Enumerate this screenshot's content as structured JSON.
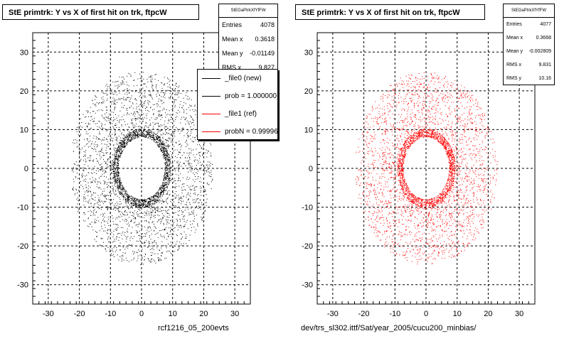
{
  "chart_data": [
    {
      "type": "scatter",
      "title": "StE primtrk: Y vs X of first hit on trk, ftpcW",
      "xlabel": "",
      "ylabel": "",
      "xlim": [
        -35,
        35
      ],
      "ylim": [
        -35,
        35
      ],
      "x_ticks": [
        -30,
        -20,
        -10,
        0,
        10,
        20,
        30
      ],
      "y_ticks": [
        -30,
        -20,
        -10,
        0,
        10,
        20,
        30
      ],
      "grid": true,
      "marker_color": "#000000",
      "distribution": {
        "inner_radius": 8,
        "outer_radius": 25,
        "n_points": 4078
      },
      "stats": {
        "name": "StEGaPtrkXfYfFW",
        "rows": [
          {
            "label": "Entries",
            "value": "4078"
          },
          {
            "label": "Mean x",
            "value": "0.3618"
          },
          {
            "label": "Mean y",
            "value": "-0.01149"
          },
          {
            "label": "RMS x",
            "value": "9.827"
          }
        ]
      },
      "legend": {
        "entries": [
          {
            "label": "_file0 (new)",
            "color": "#000000"
          },
          {
            "label": "prob = 1.000000",
            "color": "#000000"
          },
          {
            "label": "_file1 (ref)",
            "color": "#ff0000"
          },
          {
            "label": "probN = 0.999962",
            "color": "#ff0000"
          }
        ]
      },
      "footer": "rcf1216_05_200evts"
    },
    {
      "type": "scatter",
      "title": "StE primtrk: Y vs X of first hit on trk, ftpcW",
      "xlabel": "",
      "ylabel": "",
      "xlim": [
        -35,
        35
      ],
      "ylim": [
        -35,
        35
      ],
      "x_ticks": [
        -30,
        -20,
        -10,
        0,
        10,
        20,
        30
      ],
      "y_ticks": [
        -30,
        -20,
        -10,
        0,
        10,
        20,
        30
      ],
      "grid": true,
      "marker_color": "#ff0000",
      "distribution": {
        "inner_radius": 8,
        "outer_radius": 25,
        "n_points": 4077
      },
      "stats": {
        "name": "StEGaPtrkXfYfFW",
        "rows": [
          {
            "label": "Entries",
            "value": "4077"
          },
          {
            "label": "Mean x",
            "value": "0.3668"
          },
          {
            "label": "Mean y",
            "value": "-0.002809"
          },
          {
            "label": "RMS x",
            "value": "9.831"
          },
          {
            "label": "RMS y",
            "value": "10.16"
          }
        ]
      },
      "footer": "dev/trs_sl302.ittf/Sat/year_2005/cucu200_minbias/"
    }
  ]
}
